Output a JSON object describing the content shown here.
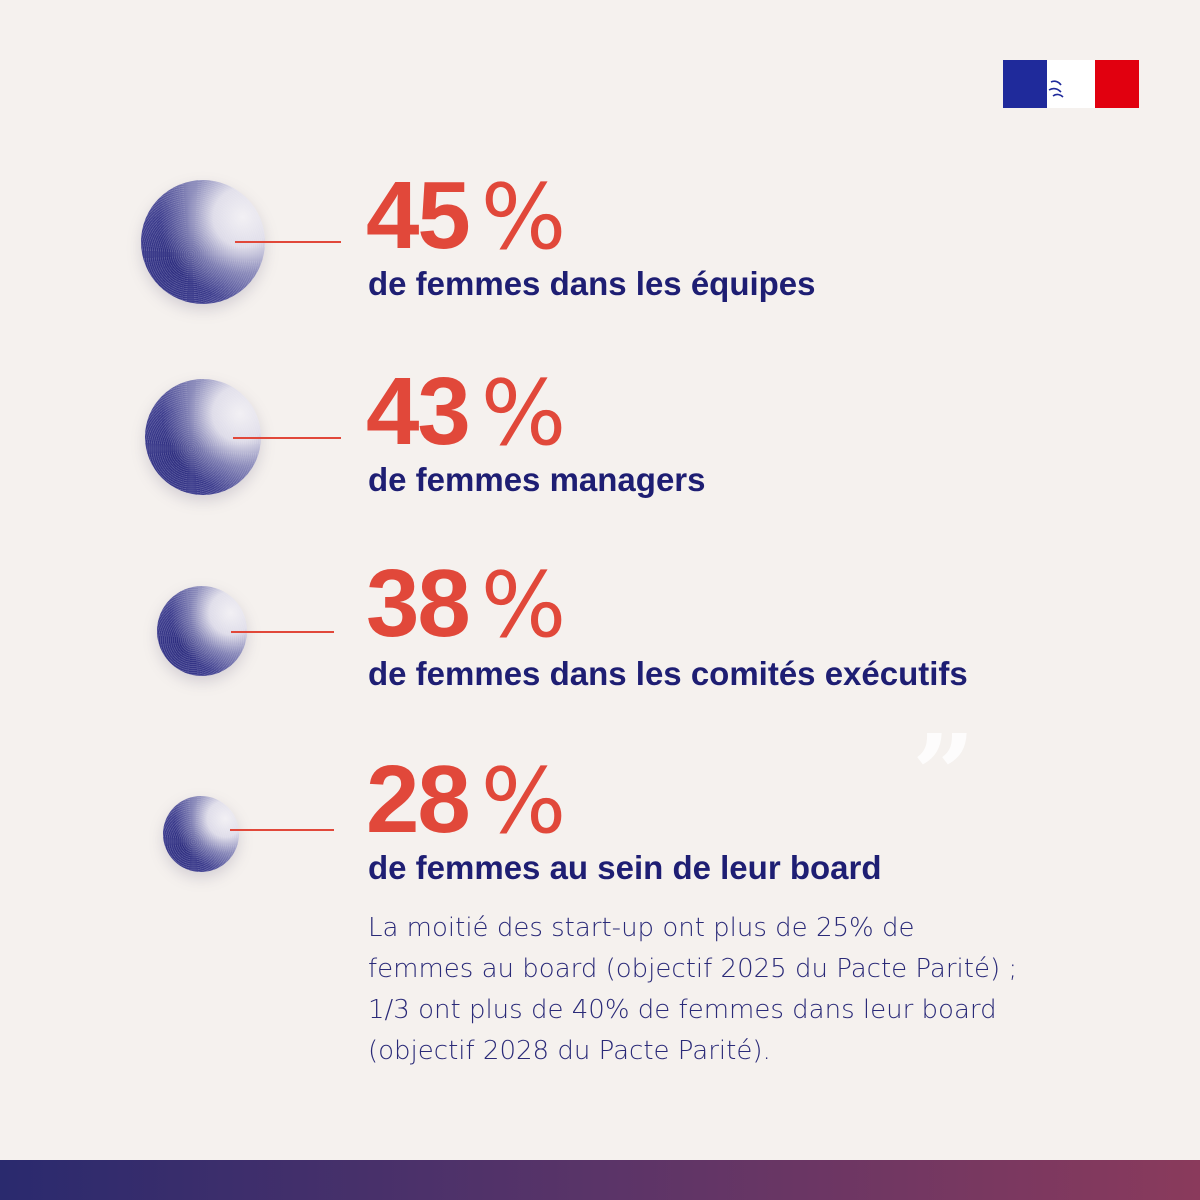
{
  "colors": {
    "background": "#f5f1ee",
    "accent": "#e1483a",
    "navy": "#1e1e73"
  },
  "logo": {
    "icon": "marianne-logo"
  },
  "stats": [
    {
      "value": "45",
      "unit": "%",
      "label": "de femmes dans les équipes"
    },
    {
      "value": "43",
      "unit": "%",
      "label": "de femmes managers"
    },
    {
      "value": "38",
      "unit": "%",
      "label": "de femmes dans les comités exécutifs"
    },
    {
      "value": "28",
      "unit": "%",
      "label": "de femmes au sein de leur board"
    }
  ],
  "note": {
    "lines": [
      "La moitié des start-up ont plus de 25% de",
      "femmes au board (objectif 2025 du Pacte Parité) ;",
      "1/3 ont plus de 40% de femmes dans leur board",
      "(objectif 2028 du Pacte Parité)."
    ]
  },
  "decor": {
    "quote_glyph": "”"
  }
}
